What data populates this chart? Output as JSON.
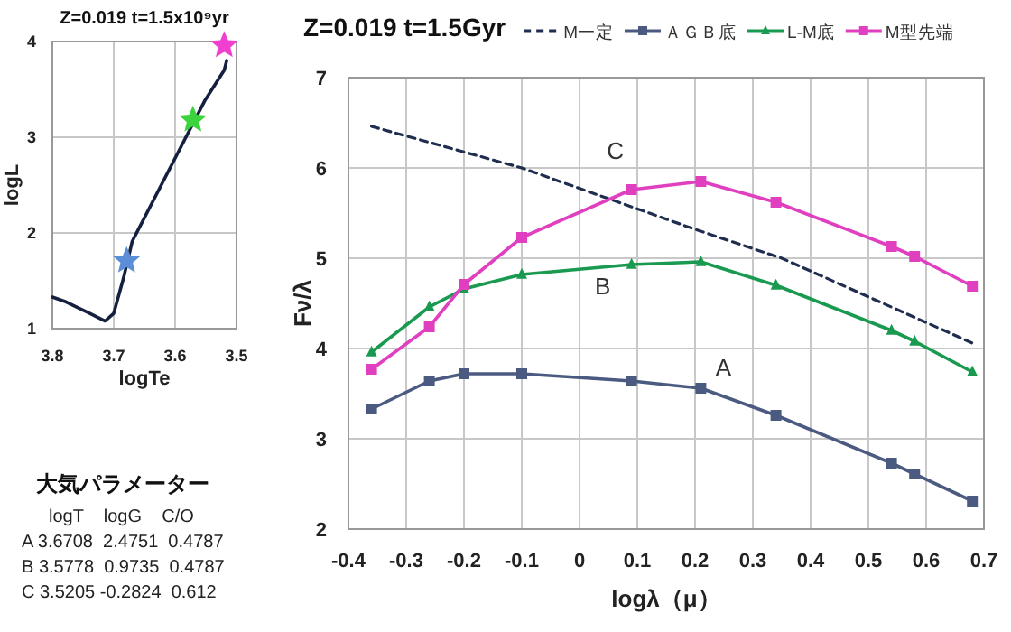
{
  "chart_data": [
    {
      "type": "line",
      "title": "Z=0.019 t=1.5x10⁹yr",
      "xlabel": "logTe",
      "ylabel": "logL",
      "xlim": [
        3.8,
        3.5
      ],
      "ylim": [
        1,
        4
      ],
      "xticks": [
        3.8,
        3.7,
        3.6,
        3.5
      ],
      "yticks": [
        1,
        2,
        3,
        4
      ],
      "grid": true,
      "series": [
        {
          "type": "line",
          "color": "#152040",
          "x": [
            3.8,
            3.778,
            3.739,
            3.714,
            3.7,
            3.684,
            3.67,
            3.576,
            3.551,
            3.52,
            3.516
          ],
          "values": [
            1.33,
            1.28,
            1.16,
            1.08,
            1.16,
            1.53,
            1.91,
            3.08,
            3.39,
            3.7,
            3.8
          ]
        },
        {
          "type": "scatter",
          "marker": "star",
          "colors": [
            "#5b8ed6",
            "#3cd43c",
            "#f040d0"
          ],
          "x": [
            3.679,
            3.571,
            3.52
          ],
          "values": [
            1.71,
            3.18,
            3.96
          ]
        }
      ]
    },
    {
      "type": "line",
      "title": "Z=0.019  t=1.5Gyr",
      "xlabel": "logλ（μ）",
      "ylabel": "Fν/λ",
      "xlim": [
        -0.4,
        0.7
      ],
      "ylim": [
        2,
        7
      ],
      "xticks": [
        -0.4,
        -0.3,
        -0.2,
        -0.1,
        0,
        0.1,
        0.2,
        0.3,
        0.4,
        0.5,
        0.6,
        0.7
      ],
      "yticks": [
        2,
        3,
        4,
        5,
        6,
        7
      ],
      "grid": true,
      "legend": "top",
      "series": [
        {
          "name": "M一定",
          "color": "#1f2d4f",
          "line_style": "dashed",
          "marker": "none",
          "x": [
            -0.36,
            -0.1,
            0.2,
            0.35,
            0.68
          ],
          "values": [
            6.46,
            6.0,
            5.32,
            5.0,
            4.06
          ]
        },
        {
          "name": "ＡＧＢ底",
          "color": "#4a5a80",
          "marker": "square",
          "x": [
            -0.36,
            -0.26,
            -0.2,
            -0.1,
            0.09,
            0.21,
            0.34,
            0.54,
            0.58,
            0.68
          ],
          "values": [
            3.33,
            3.64,
            3.72,
            3.72,
            3.64,
            3.56,
            3.26,
            2.73,
            2.61,
            2.31
          ]
        },
        {
          "name": "L-M底",
          "color": "#1a9a50",
          "marker": "triangle",
          "x": [
            -0.36,
            -0.26,
            -0.2,
            -0.1,
            0.09,
            0.21,
            0.34,
            0.54,
            0.58,
            0.68
          ],
          "values": [
            3.96,
            4.46,
            4.66,
            4.82,
            4.93,
            4.96,
            4.7,
            4.2,
            4.08,
            3.74
          ]
        },
        {
          "name": "M型先端",
          "color": "#e040c0",
          "marker": "square",
          "x": [
            -0.36,
            -0.26,
            -0.2,
            -0.1,
            0.09,
            0.21,
            0.34,
            0.54,
            0.58,
            0.68
          ],
          "values": [
            3.77,
            4.24,
            4.71,
            5.23,
            5.76,
            5.85,
            5.62,
            5.13,
            5.02,
            4.69
          ]
        }
      ],
      "annotations": [
        "A",
        "B",
        "C"
      ]
    },
    {
      "type": "other",
      "title": "大気パラメーター",
      "annotations": [
        "logT    logG    C/O",
        "A 3.6708  2.4751  0.4787",
        "B 3.5778  0.9735  0.4787",
        "C 3.5205 -0.2824  0.612"
      ]
    }
  ]
}
